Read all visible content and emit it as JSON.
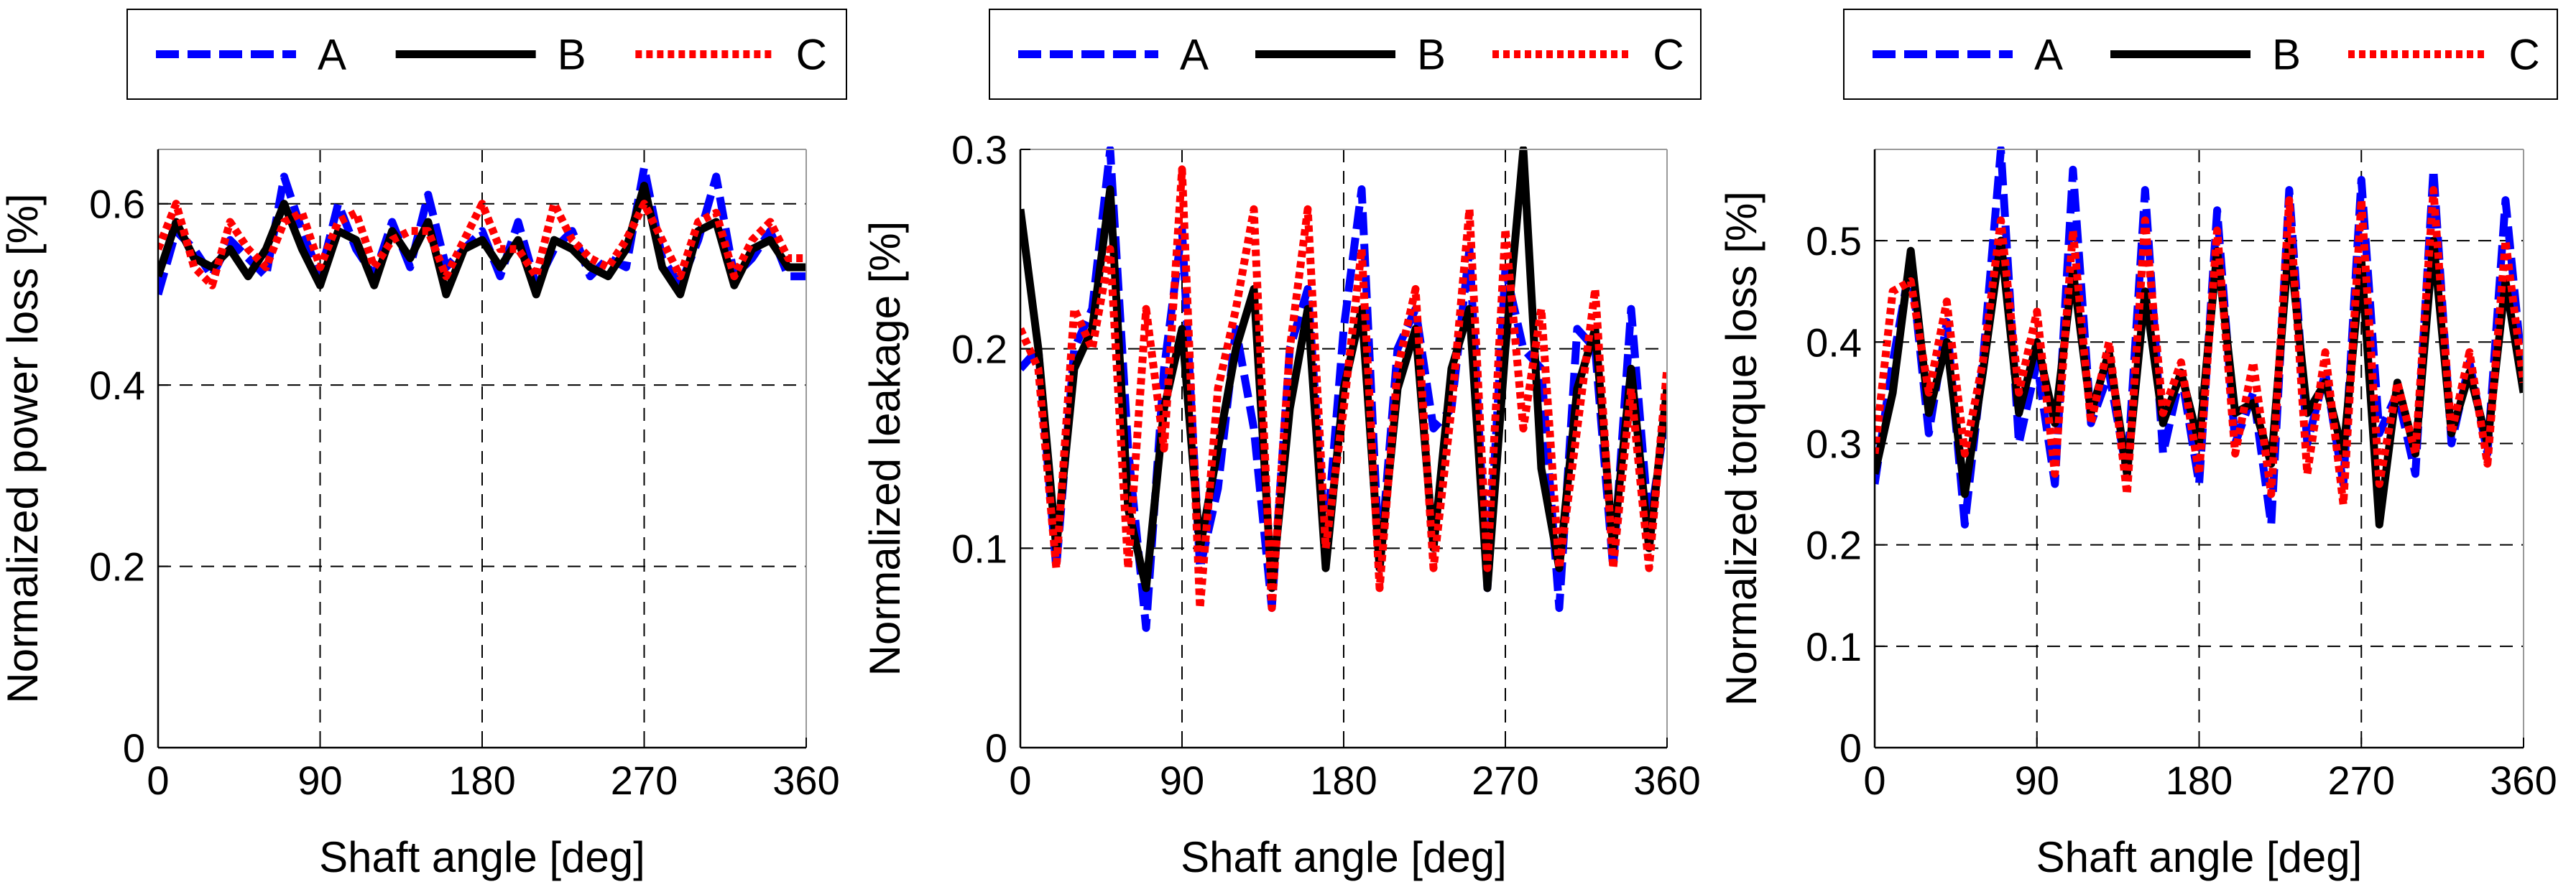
{
  "chart_data": [
    {
      "type": "line",
      "title": "",
      "xlabel": "Shaft angle [deg]",
      "ylabel": "Normalized power loss [%]",
      "xlim": [
        0,
        360
      ],
      "ylim": [
        0,
        0.66
      ],
      "xticks": [
        0,
        90,
        180,
        270,
        360
      ],
      "yticks": [
        0,
        0.2,
        0.4,
        0.6
      ],
      "ytick_labels": [
        "0",
        "0.2",
        "0.4",
        "0.6"
      ],
      "grid": true,
      "legend": {
        "placement": "top-outside",
        "entries": [
          "A",
          "B",
          "C"
        ]
      },
      "x": [
        0,
        10,
        20,
        30,
        40,
        50,
        60,
        70,
        80,
        90,
        100,
        110,
        120,
        130,
        140,
        150,
        160,
        170,
        180,
        190,
        200,
        210,
        220,
        230,
        240,
        250,
        260,
        270,
        280,
        290,
        300,
        310,
        320,
        330,
        340,
        350,
        360
      ],
      "series": [
        {
          "name": "A",
          "style": "dashed",
          "color": "#0000ff",
          "values": [
            0.5,
            0.57,
            0.55,
            0.52,
            0.56,
            0.54,
            0.52,
            0.63,
            0.57,
            0.52,
            0.6,
            0.55,
            0.52,
            0.58,
            0.53,
            0.61,
            0.53,
            0.55,
            0.57,
            0.52,
            0.58,
            0.51,
            0.55,
            0.57,
            0.52,
            0.54,
            0.53,
            0.64,
            0.54,
            0.51,
            0.56,
            0.63,
            0.52,
            0.54,
            0.57,
            0.52,
            0.52
          ]
        },
        {
          "name": "B",
          "style": "solid",
          "color": "#000000",
          "values": [
            0.52,
            0.58,
            0.54,
            0.53,
            0.55,
            0.52,
            0.55,
            0.6,
            0.55,
            0.51,
            0.57,
            0.56,
            0.51,
            0.57,
            0.54,
            0.58,
            0.5,
            0.55,
            0.56,
            0.53,
            0.56,
            0.5,
            0.56,
            0.55,
            0.53,
            0.52,
            0.55,
            0.62,
            0.53,
            0.5,
            0.57,
            0.58,
            0.51,
            0.55,
            0.56,
            0.53,
            0.53
          ]
        },
        {
          "name": "C",
          "style": "dotted",
          "color": "#ff0000",
          "values": [
            0.55,
            0.6,
            0.53,
            0.51,
            0.58,
            0.55,
            0.53,
            0.58,
            0.59,
            0.53,
            0.58,
            0.59,
            0.53,
            0.56,
            0.57,
            0.57,
            0.52,
            0.56,
            0.6,
            0.55,
            0.55,
            0.52,
            0.6,
            0.56,
            0.54,
            0.53,
            0.56,
            0.6,
            0.56,
            0.52,
            0.58,
            0.59,
            0.52,
            0.56,
            0.58,
            0.54,
            0.54
          ]
        }
      ]
    },
    {
      "type": "line",
      "title": "",
      "xlabel": "Shaft angle [deg]",
      "ylabel": "Normalized leakage [%]",
      "xlim": [
        0,
        360
      ],
      "ylim": [
        0,
        0.3
      ],
      "xticks": [
        0,
        90,
        180,
        270,
        360
      ],
      "yticks": [
        0,
        0.1,
        0.2,
        0.3
      ],
      "ytick_labels": [
        "0",
        "0.1",
        "0.2",
        "0.3"
      ],
      "grid": true,
      "legend": {
        "placement": "top-outside",
        "entries": [
          "A",
          "B",
          "C"
        ]
      },
      "x": [
        0,
        10,
        20,
        30,
        40,
        50,
        60,
        70,
        80,
        90,
        100,
        110,
        120,
        130,
        140,
        150,
        160,
        170,
        180,
        190,
        200,
        210,
        220,
        230,
        240,
        250,
        260,
        270,
        280,
        290,
        300,
        310,
        320,
        330,
        340,
        350,
        360
      ],
      "series": [
        {
          "name": "A",
          "style": "dashed",
          "color": "#0000ff",
          "values": [
            0.19,
            0.2,
            0.09,
            0.2,
            0.22,
            0.3,
            0.15,
            0.06,
            0.19,
            0.26,
            0.09,
            0.13,
            0.21,
            0.16,
            0.07,
            0.2,
            0.23,
            0.1,
            0.21,
            0.28,
            0.09,
            0.2,
            0.22,
            0.16,
            0.17,
            0.25,
            0.08,
            0.24,
            0.2,
            0.19,
            0.07,
            0.21,
            0.2,
            0.09,
            0.22,
            0.11,
            0.17
          ]
        },
        {
          "name": "B",
          "style": "solid",
          "color": "#000000",
          "values": [
            0.27,
            0.2,
            0.1,
            0.19,
            0.21,
            0.28,
            0.12,
            0.08,
            0.17,
            0.21,
            0.1,
            0.15,
            0.2,
            0.23,
            0.08,
            0.17,
            0.22,
            0.09,
            0.18,
            0.22,
            0.09,
            0.18,
            0.21,
            0.1,
            0.19,
            0.22,
            0.08,
            0.2,
            0.3,
            0.14,
            0.09,
            0.18,
            0.21,
            0.1,
            0.19,
            0.1,
            0.18
          ]
        },
        {
          "name": "C",
          "style": "dotted",
          "color": "#ff0000",
          "values": [
            0.21,
            0.19,
            0.09,
            0.22,
            0.2,
            0.25,
            0.09,
            0.22,
            0.15,
            0.29,
            0.07,
            0.18,
            0.22,
            0.27,
            0.07,
            0.2,
            0.27,
            0.1,
            0.17,
            0.25,
            0.08,
            0.19,
            0.23,
            0.09,
            0.17,
            0.27,
            0.09,
            0.26,
            0.16,
            0.22,
            0.09,
            0.16,
            0.23,
            0.09,
            0.18,
            0.09,
            0.19
          ]
        }
      ]
    },
    {
      "type": "line",
      "title": "",
      "xlabel": "Shaft angle [deg]",
      "ylabel": "Normalized torque loss [%]",
      "xlim": [
        0,
        360
      ],
      "ylim": [
        0,
        0.59
      ],
      "xticks": [
        0,
        90,
        180,
        270,
        360
      ],
      "yticks": [
        0,
        0.1,
        0.2,
        0.3,
        0.4,
        0.5
      ],
      "ytick_labels": [
        "0",
        "0.1",
        "0.2",
        "0.3",
        "0.4",
        "0.5"
      ],
      "grid": true,
      "legend": {
        "placement": "top-outside",
        "entries": [
          "A",
          "B",
          "C"
        ]
      },
      "x": [
        0,
        10,
        20,
        30,
        40,
        50,
        60,
        70,
        80,
        90,
        100,
        110,
        120,
        130,
        140,
        150,
        160,
        170,
        180,
        190,
        200,
        210,
        220,
        230,
        240,
        250,
        260,
        270,
        280,
        290,
        300,
        310,
        320,
        330,
        340,
        350,
        360
      ],
      "series": [
        {
          "name": "A",
          "style": "dashed",
          "color": "#0000ff",
          "values": [
            0.26,
            0.38,
            0.48,
            0.31,
            0.42,
            0.22,
            0.38,
            0.59,
            0.3,
            0.38,
            0.26,
            0.57,
            0.32,
            0.37,
            0.27,
            0.55,
            0.29,
            0.37,
            0.26,
            0.53,
            0.3,
            0.35,
            0.22,
            0.55,
            0.3,
            0.37,
            0.26,
            0.56,
            0.31,
            0.35,
            0.27,
            0.57,
            0.3,
            0.38,
            0.29,
            0.54,
            0.36
          ]
        },
        {
          "name": "B",
          "style": "solid",
          "color": "#000000",
          "values": [
            0.27,
            0.35,
            0.49,
            0.33,
            0.4,
            0.25,
            0.37,
            0.5,
            0.33,
            0.4,
            0.32,
            0.47,
            0.33,
            0.39,
            0.27,
            0.45,
            0.32,
            0.37,
            0.3,
            0.49,
            0.33,
            0.34,
            0.28,
            0.5,
            0.33,
            0.36,
            0.29,
            0.48,
            0.22,
            0.36,
            0.29,
            0.5,
            0.31,
            0.37,
            0.3,
            0.46,
            0.35
          ]
        },
        {
          "name": "C",
          "style": "dotted",
          "color": "#ff0000",
          "values": [
            0.29,
            0.45,
            0.46,
            0.35,
            0.44,
            0.29,
            0.38,
            0.52,
            0.35,
            0.43,
            0.27,
            0.51,
            0.32,
            0.4,
            0.25,
            0.52,
            0.33,
            0.38,
            0.27,
            0.51,
            0.29,
            0.38,
            0.25,
            0.54,
            0.27,
            0.39,
            0.24,
            0.54,
            0.26,
            0.36,
            0.29,
            0.55,
            0.31,
            0.39,
            0.28,
            0.5,
            0.36
          ]
        }
      ]
    }
  ]
}
